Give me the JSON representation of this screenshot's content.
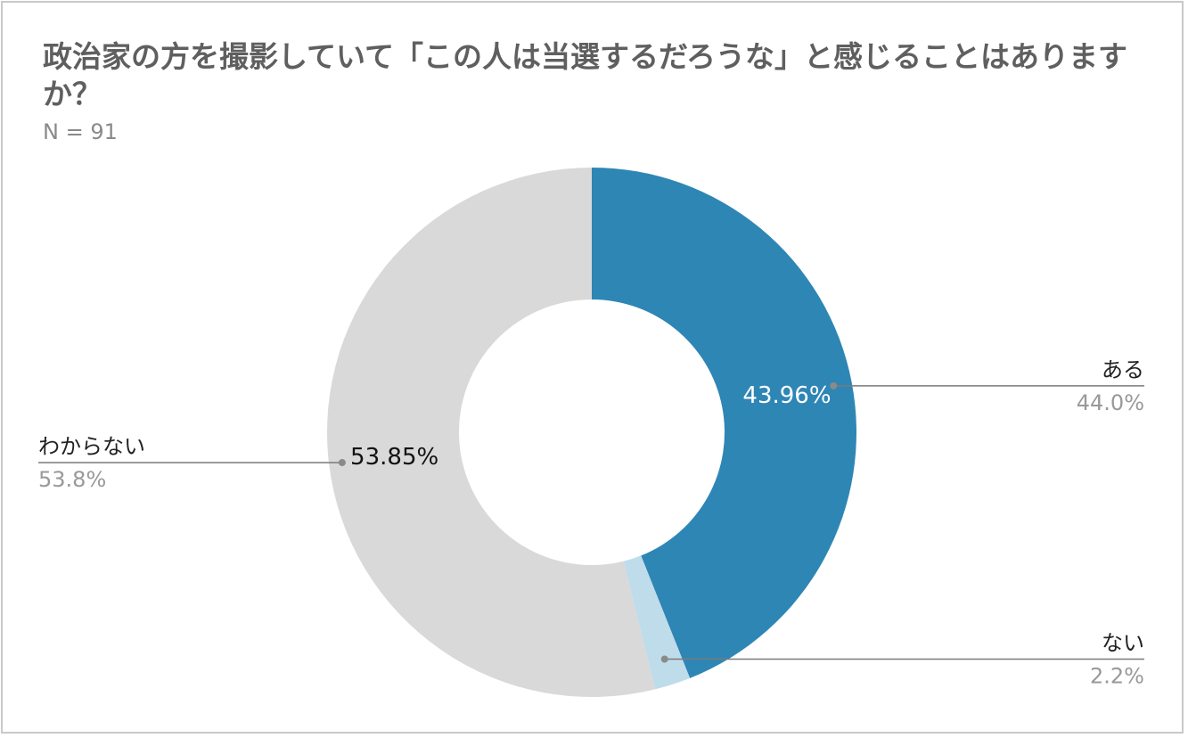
{
  "chart_data": {
    "type": "pie",
    "style": "donut",
    "title": "政治家の方を撮影していて「この人は当選するだろうな」と感じることはありますか？",
    "subtitle": "N = 91",
    "categories": [
      "ある",
      "ない",
      "わからない"
    ],
    "values": [
      43.96,
      2.2,
      53.85
    ],
    "slice_labels": [
      "43.96%",
      "",
      "53.85%"
    ],
    "legend_percent_labels": [
      "44.0%",
      "2.2%",
      "53.8%"
    ],
    "colors": [
      "#2e86b5",
      "#bfdceb",
      "#d9d9d9"
    ],
    "slice_label_colors": [
      "#ffffff",
      "#222222",
      "#111111"
    ],
    "label_placement": [
      "right",
      "right",
      "left"
    ]
  }
}
